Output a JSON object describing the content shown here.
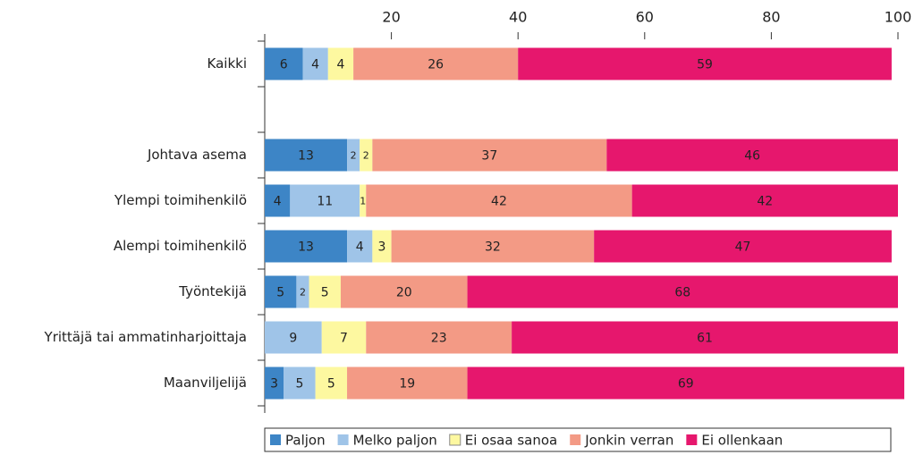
{
  "chart_data": {
    "type": "stacked-bar-horizontal",
    "categories": [
      "Kaikki",
      null,
      "Johtava asema",
      "Ylempi toimihenkilö",
      "Alempi toimihenkilö",
      "Työntekijä",
      "Yrittäjä tai ammatinharjoittaja",
      "Maanviljelijä"
    ],
    "series": [
      {
        "name": "Paljon",
        "color": "#3d85c6",
        "values": [
          6,
          null,
          13,
          4,
          13,
          5,
          null,
          3
        ]
      },
      {
        "name": "Melko paljon",
        "color": "#9fc4e8",
        "values": [
          4,
          null,
          2,
          11,
          4,
          2,
          9,
          5
        ]
      },
      {
        "name": "Ei osaa sanoa",
        "color": "#fdf8a0",
        "values": [
          4,
          null,
          2,
          1,
          3,
          5,
          7,
          5
        ]
      },
      {
        "name": "Jonkin verran",
        "color": "#f39a85",
        "values": [
          26,
          null,
          37,
          42,
          32,
          20,
          23,
          19
        ]
      },
      {
        "name": "Ei ollenkaan",
        "color": "#e6176d",
        "values": [
          59,
          null,
          46,
          42,
          47,
          68,
          61,
          69
        ]
      }
    ],
    "xlim": [
      0,
      100
    ],
    "xticks": [
      20,
      40,
      60,
      80,
      100
    ],
    "legend": "bottom"
  }
}
